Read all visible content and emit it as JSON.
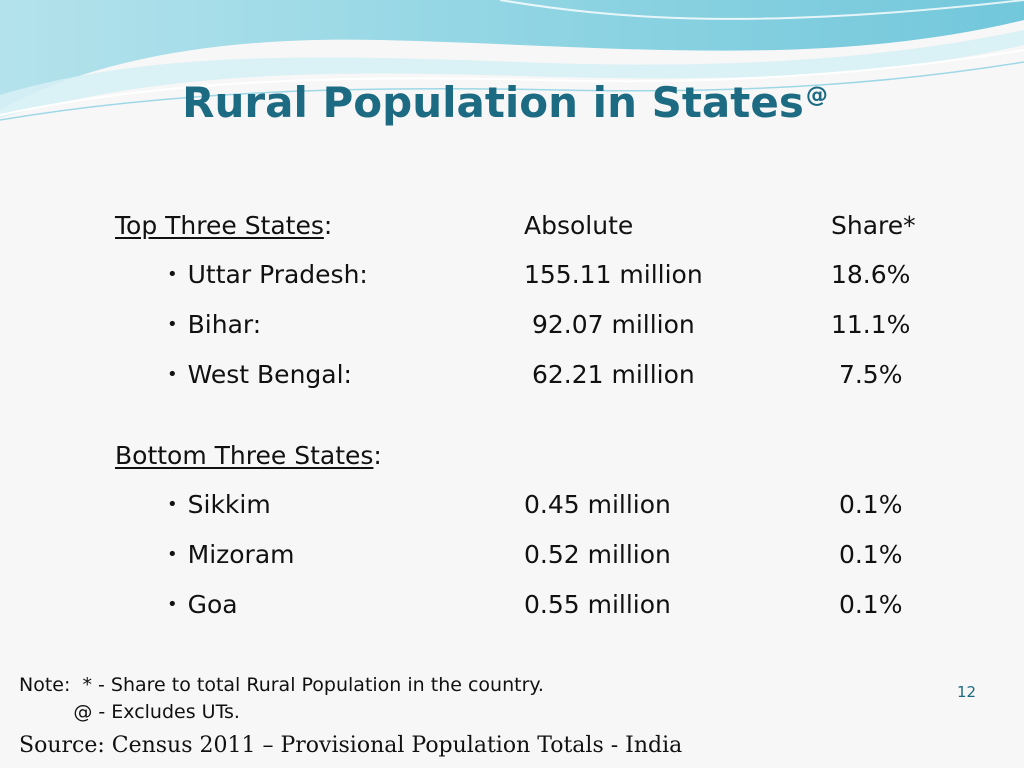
{
  "title": {
    "text": "Rural Population in States",
    "superscript": "@"
  },
  "top_section": {
    "heading": "Top Three States",
    "heading_suffix": ":",
    "col_absolute": "Absolute",
    "col_share": "Share*",
    "rows": [
      {
        "state": "Uttar Pradesh:",
        "absolute": "155.11 million",
        "share": "18.6%"
      },
      {
        "state": "Bihar:",
        "absolute": " 92.07 million",
        "share": "11.1%"
      },
      {
        "state": "West Bengal:",
        "absolute": " 62.21 million",
        "share": " 7.5%"
      }
    ]
  },
  "bottom_section": {
    "heading": "Bottom Three States",
    "heading_suffix": ":",
    "rows": [
      {
        "state": "Sikkim",
        "absolute": "0.45 million",
        "share": " 0.1%"
      },
      {
        "state": "Mizoram",
        "absolute": "0.52 million",
        "share": " 0.1%"
      },
      {
        "state": "Goa",
        "absolute": "0.55 million",
        "share": " 0.1%"
      }
    ]
  },
  "bullet_glyph": "•",
  "note": {
    "line1": "Note:  * - Share to total Rural Population in the country.",
    "line2": "         @ - Excludes UTs."
  },
  "source": "Source: Census 2011 – Provisional Population Totals - India",
  "page_number": "12",
  "colors": {
    "title": "#1d6b82",
    "wave_light": "#bfe6ee",
    "wave_mid": "#7fcfe0",
    "wave_dark": "#4fb3cc"
  }
}
